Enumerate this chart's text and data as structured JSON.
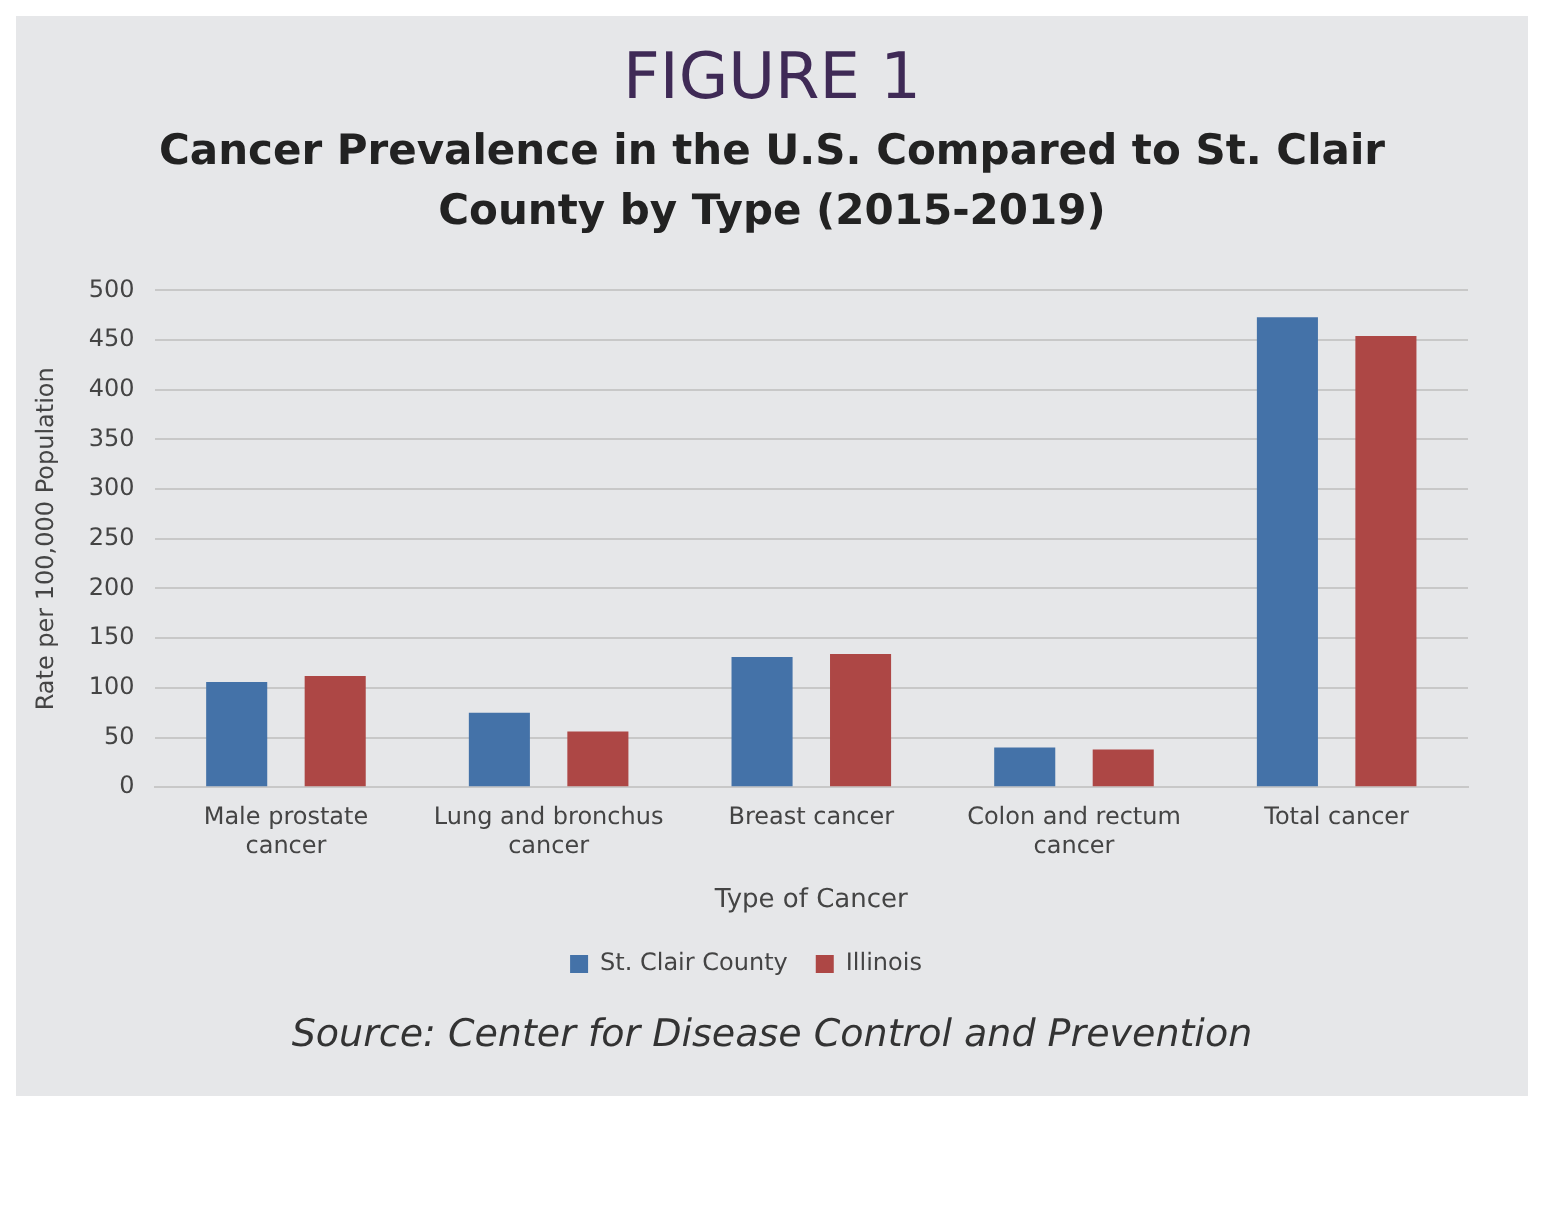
{
  "chart_data": {
    "type": "bar",
    "title": "FIGURE 1",
    "subtitle": "Cancer Prevalence in the U.S. Compared to St. Clair County by Type (2015-2019)",
    "xlabel": "Type of Cancer",
    "ylabel": "Rate per 100,000 Population",
    "categories": [
      "Male prostate cancer",
      "Lung and bronchus cancer",
      "Breast cancer",
      "Colon and rectum cancer",
      "Total cancer"
    ],
    "series": [
      {
        "name": "St. Clair County",
        "color": "#4472a8",
        "values": [
          106,
          75,
          131,
          40,
          473
        ]
      },
      {
        "name": "Illinois",
        "color": "#ad4745",
        "values": [
          112,
          56,
          134,
          38,
          454
        ]
      }
    ],
    "ylim": [
      0,
      500
    ],
    "yticks": [
      0,
      50,
      100,
      150,
      200,
      250,
      300,
      350,
      400,
      450,
      500
    ],
    "grid": "y",
    "legend": "bottom",
    "annotations": [
      "Source: Center for Disease Control and Prevention"
    ]
  }
}
